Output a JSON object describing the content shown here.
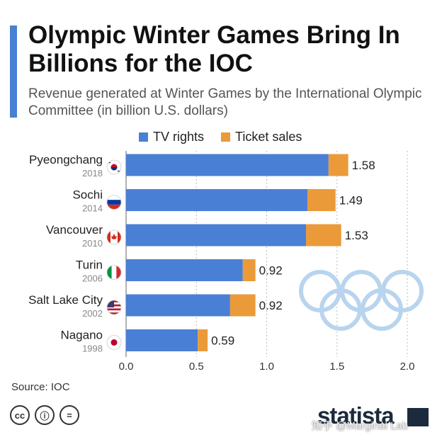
{
  "header": {
    "title": "Olympic Winter Games Bring In Billions for the IOC",
    "subtitle": "Revenue generated at Winter Games by the International Olympic Committee (in billion U.S. dollars)"
  },
  "colors": {
    "accent": "#4a7fd6",
    "tv": "#4a7fd6",
    "ticket": "#eb9a3a",
    "rings": "#b9d4ee",
    "gridline": "#bbbbbb"
  },
  "chart_data": {
    "type": "bar",
    "orientation": "horizontal",
    "stacked": true,
    "categories": [
      {
        "name": "Pyeongchang",
        "year": "2018",
        "flag": "south-korea-flag"
      },
      {
        "name": "Sochi",
        "year": "2014",
        "flag": "russia-flag"
      },
      {
        "name": "Vancouver",
        "year": "2010",
        "flag": "canada-flag"
      },
      {
        "name": "Turin",
        "year": "2006",
        "flag": "italy-flag"
      },
      {
        "name": "Salt Lake City",
        "year": "2002",
        "flag": "usa-flag"
      },
      {
        "name": "Nagano",
        "year": "1998",
        "flag": "japan-flag"
      }
    ],
    "series": [
      {
        "name": "TV rights",
        "values": [
          1.44,
          1.29,
          1.28,
          0.83,
          0.74,
          0.51
        ]
      },
      {
        "name": "Ticket sales",
        "values": [
          0.14,
          0.2,
          0.25,
          0.09,
          0.18,
          0.07
        ]
      }
    ],
    "totals": [
      "1.58",
      "1.49",
      "1.53",
      "0.92",
      "0.92",
      "0.59"
    ],
    "xlim": [
      0,
      2.0
    ],
    "xticks": [
      "0.0",
      "0.5",
      "1.0",
      "1.5",
      "2.0"
    ],
    "grid": true,
    "legend": "top-center"
  },
  "footer": {
    "source": "Source: IOC",
    "cc_icons": [
      {
        "name": "cc-icon",
        "glyph": "cc"
      },
      {
        "name": "by-icon",
        "glyph": "ⓘ"
      },
      {
        "name": "nd-icon",
        "glyph": "="
      }
    ],
    "brand": "statista",
    "watermark": "知乎 @Marginal Lab"
  }
}
